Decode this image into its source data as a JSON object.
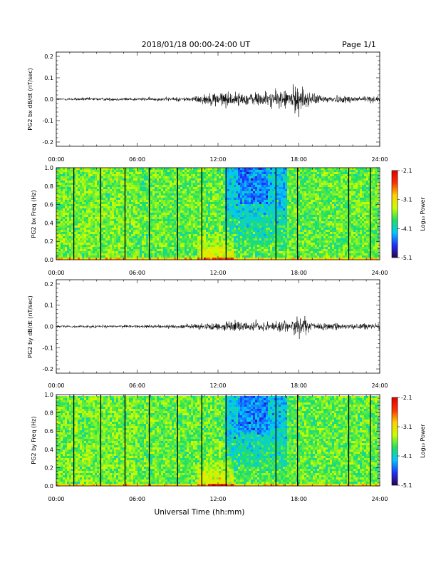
{
  "header": {
    "title": "2018/01/18  00:00-24:00 UT",
    "page": "Page 1/1"
  },
  "footer": {
    "xlabel": "Universal Time (hh:mm)"
  },
  "colorbar": {
    "label": "Log₁₀ Power",
    "ticks": [
      "-2.1",
      "-3.1",
      "-4.1",
      "-5.1"
    ],
    "range": [
      -5.1,
      -2.1
    ],
    "colors": [
      "#2a0050",
      "#2030ff",
      "#00c8ff",
      "#20e060",
      "#c8ff00",
      "#ffd000",
      "#ff3000",
      "#e00000"
    ]
  },
  "chart_data": [
    {
      "type": "line",
      "ylabel": "PG2 bx dB/dt (nT/sec)",
      "x_unit": "hours UT",
      "xlim": [
        0,
        24
      ],
      "ylim": [
        -0.22,
        0.22
      ],
      "xticks": [
        "00:00",
        "06:00",
        "12:00",
        "18:00",
        "24:00"
      ],
      "yticks": [
        "0.2",
        "0.1",
        "0.0",
        "-0.1",
        "-0.2"
      ],
      "series": [
        {
          "x": [
            0,
            2,
            4,
            6,
            8,
            10,
            11,
            12,
            13,
            14,
            15,
            16,
            17,
            18,
            19,
            20,
            22,
            24
          ],
          "envelope": [
            0.005,
            0.006,
            0.006,
            0.006,
            0.007,
            0.009,
            0.018,
            0.03,
            0.025,
            0.022,
            0.028,
            0.03,
            0.035,
            0.055,
            0.02,
            0.015,
            0.013,
            0.012
          ]
        }
      ]
    },
    {
      "type": "heatmap",
      "ylabel": "PG2 bx Freq (Hz)",
      "xlim": [
        0,
        24
      ],
      "ylim": [
        0.0,
        1.0
      ],
      "xticks": [
        "00:00",
        "06:00",
        "12:00",
        "18:00",
        "24:00"
      ],
      "yticks": [
        "1.0",
        "0.8",
        "0.6",
        "0.4",
        "0.2",
        "0.0"
      ],
      "gap_lines_ut": [
        1.3,
        3.3,
        5.1,
        6.9,
        9.0,
        10.8,
        12.6,
        16.3,
        17.9,
        21.7,
        23.3
      ]
    },
    {
      "type": "line",
      "ylabel": "PG2 by dB/dt (nT/sec)",
      "x_unit": "hours UT",
      "xlim": [
        0,
        24
      ],
      "ylim": [
        -0.22,
        0.22
      ],
      "xticks": [
        "00:00",
        "06:00",
        "12:00",
        "18:00",
        "24:00"
      ],
      "yticks": [
        "0.2",
        "0.1",
        "0.0",
        "-0.1",
        "-0.2"
      ],
      "series": [
        {
          "x": [
            0,
            2,
            4,
            6,
            8,
            10,
            11,
            12,
            13,
            14,
            15,
            16,
            17,
            18,
            19,
            20,
            22,
            24
          ],
          "envelope": [
            0.004,
            0.005,
            0.005,
            0.006,
            0.007,
            0.008,
            0.012,
            0.02,
            0.018,
            0.018,
            0.02,
            0.02,
            0.022,
            0.04,
            0.015,
            0.013,
            0.012,
            0.011
          ]
        }
      ]
    },
    {
      "type": "heatmap",
      "ylabel": "PG2 by Freq (Hz)",
      "xlim": [
        0,
        24
      ],
      "ylim": [
        0.0,
        1.0
      ],
      "xticks": [
        "00:00",
        "06:00",
        "12:00",
        "18:00",
        "24:00"
      ],
      "yticks": [
        "1.0",
        "0.8",
        "0.6",
        "0.4",
        "0.2",
        "0.0"
      ],
      "gap_lines_ut": [
        1.3,
        3.3,
        5.1,
        6.9,
        9.0,
        10.8,
        12.6,
        16.3,
        17.9,
        21.7,
        23.3
      ]
    }
  ]
}
